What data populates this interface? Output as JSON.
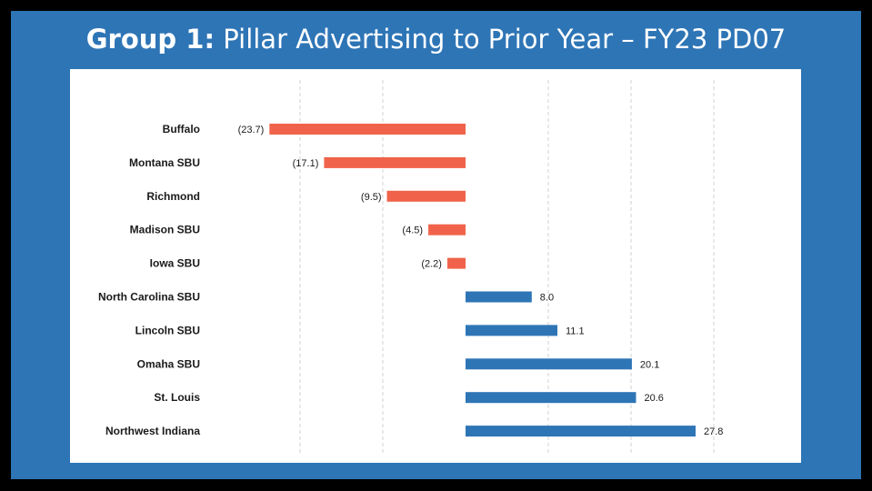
{
  "title": {
    "bold": "Group 1:",
    "rest": " Pillar Advertising to Prior Year – FY23 PD07"
  },
  "colors": {
    "background": "#2e75b6",
    "negative": "#f0634a",
    "positive": "#2e75b6",
    "gridline": "#d0d0d0"
  },
  "chart_data": {
    "type": "bar",
    "orientation": "horizontal",
    "title": "Pillar Advertising to Prior Year – FY23 PD07",
    "categories": [
      "Buffalo",
      "Montana SBU",
      "Richmond",
      "Madison SBU",
      "Iowa SBU",
      "North Carolina SBU",
      "Lincoln SBU",
      "Omaha SBU",
      "St. Louis",
      "Northwest Indiana"
    ],
    "values": [
      -23.7,
      -17.1,
      -9.5,
      -4.5,
      -2.2,
      8.0,
      11.1,
      20.1,
      20.6,
      27.8
    ],
    "value_labels": [
      "(23.7)",
      "(17.1)",
      "(9.5)",
      "(4.5)",
      "(2.2)",
      "8.0",
      "11.1",
      "20.1",
      "20.6",
      "27.8"
    ],
    "xlim": [
      -20,
      30
    ],
    "grid": true,
    "grid_style": "dashed vertical",
    "legend": "none"
  }
}
